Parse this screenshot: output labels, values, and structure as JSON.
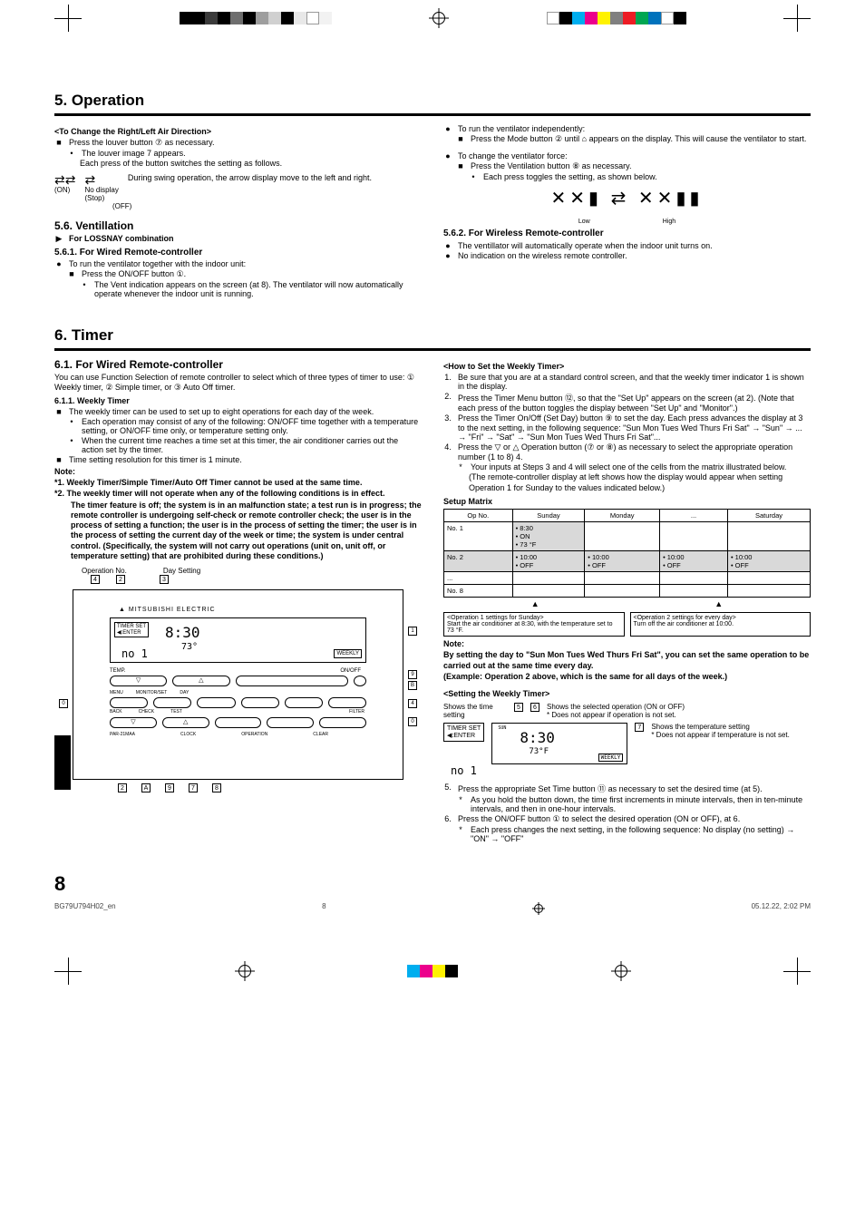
{
  "regmarks": {
    "top_left_colors": [
      "#000000",
      "#000000",
      "#3b3b3b",
      "#000000",
      "#6e6e6e",
      "#000000",
      "#9e9e9e",
      "#d0d0d0",
      "#000000",
      "#e8e8e8",
      "#ffffff",
      "#f2f2f2"
    ],
    "top_right_colors": [
      "#ffffff",
      "#000000",
      "#00aeef",
      "#ec008c",
      "#fff200",
      "#808080",
      "#ed1c24",
      "#00a651",
      "#0072bc",
      "#ffffff",
      "#000000"
    ],
    "bottom_colors": [
      "#00aeef",
      "#ec008c",
      "#fff200",
      "#000000"
    ]
  },
  "section5": {
    "title": "5. Operation",
    "left": {
      "change_dir_title": "<To Change the Right/Left Air Direction>",
      "press_louver": "Press the louver button ⑦ as necessary.",
      "louver_appears": "The louver image 7 appears.",
      "each_press": "Each press of the button switches the setting as follows.",
      "swing": {
        "on": "(ON)",
        "stop_label": "No display\n(Stop)",
        "off": "(OFF)",
        "desc": "During swing operation, the arrow display move to the left and right."
      },
      "vent_title": "5.6. Ventillation",
      "lossnay": "For LOSSNAY combination",
      "wired_title": "5.6.1. For Wired Remote-controller",
      "run_with_indoor": "To run the ventilator together with the indoor unit:",
      "press_onoff": "Press the ON/OFF button ①.",
      "vent_indication": "The Vent indication appears on the screen (at 8). The ventilator will now automatically operate whenever the indoor unit is running."
    },
    "right": {
      "run_indep": "To run the ventilator independently:",
      "press_mode": "Press the Mode button ② until  ⌂  appears on the display. This will cause the ventilator to start.",
      "change_force": "To change the ventilator force:",
      "press_vent_btn": "Press the Ventilation button ⑧ as necessary.",
      "each_toggle": "Each press toggles the setting, as shown below.",
      "low": "Low",
      "high": "High",
      "wireless_title": "5.6.2. For Wireless Remote-controller",
      "auto_operate": "The ventillator will automatically operate when the indoor unit turns on.",
      "no_indication": "No indication on the wireless remote controller."
    }
  },
  "section6": {
    "title": "6. Timer",
    "left": {
      "wired_title": "6.1. For Wired Remote-controller",
      "intro": "You can use Function Selection of remote controller to select which of three types of timer to use: ① Weekly timer, ② Simple timer, or ③ Auto Off timer.",
      "weekly_title": "6.1.1. Weekly Timer",
      "weekly_desc": "The weekly timer can be used to set up to eight operations for each day of the week.",
      "weekly_b1": "Each operation may consist of any of the following: ON/OFF time together with a temperature setting, or ON/OFF time only, or temperature setting only.",
      "weekly_b2": "When the current time reaches a time set at this timer, the air conditioner carries out the action set by the timer.",
      "resolution": "Time setting resolution for this timer is 1 minute.",
      "note_label": "Note:",
      "note1": "*1. Weekly Timer/Simple Timer/Auto Off Timer cannot be used at the same time.",
      "note2": "*2. The weekly timer will not operate when any of the following conditions is in effect.",
      "note2_body": "The timer feature is off; the system is in an malfunction state; a test run is in progress; the remote controller is undergoing self-check or remote controller check; the user is in the process of setting a function; the user is in the process of setting the timer; the user is in the process of setting the current day of the week or time; the system is under central control. (Specifically, the system will not carry out operations (unit on, unit off, or temperature setting) that are prohibited during these conditions.)",
      "diagram": {
        "operation_no": "Operation No.",
        "day_setting": "Day Setting",
        "brand": "▲ MITSUBISHI ELECTRIC",
        "timer_set": "TIMER SET\n◀:ENTER",
        "time": "8:30",
        "temp": "73°",
        "weekly": "WEEKLY",
        "labels": {
          "temp_btn": "TEMP.",
          "onoff": "ON/OFF",
          "menu": "MENU",
          "back": "BACK",
          "monitor": "MONITOR/SET",
          "day": "DAY",
          "check": "CHECK",
          "test": "TEST",
          "filter": "FILTER",
          "onoff2": "ON/OFF",
          "clock": "CLOCK",
          "operation": "OPERATION",
          "clear": "CLEAR",
          "par": "PAR-21MAA"
        },
        "callouts": [
          "1",
          "2",
          "3",
          "4",
          "7",
          "8",
          "9",
          "0",
          "A",
          "B",
          "C",
          "D"
        ]
      }
    },
    "right": {
      "howto_title": "<How to Set the Weekly Timer>",
      "step1": "Be sure that you are at a standard control screen, and that the weekly timer indicator 1 is shown in the display.",
      "step2": "Press the Timer Menu button ⑫, so that the \"Set Up\" appears on the screen (at 2). (Note that each press of the button toggles the display between \"Set Up\" and \"Monitor\".)",
      "step3": "Press the Timer On/Off (Set Day) button ⑨ to set the day. Each press advances the display at 3 to the next setting, in the following sequence: \"Sun Mon Tues Wed Thurs Fri Sat\" → \"Sun\" → ... → \"Fri\" → \"Sat\" → \"Sun Mon Tues Wed Thurs Fri Sat\"...",
      "step4": "Press the ▽ or △ Operation button (⑦ or ⑧) as necessary to select the appropriate operation number (1 to 8) 4.",
      "step4_star": "Your inputs at Steps 3 and 4 will select one of the cells from the matrix illustrated below.",
      "step4_paren": "(The remote-controller display at left shows how the display would appear when setting Operation 1 for Sunday to the values indicated below.)",
      "matrix_title": "Setup Matrix",
      "matrix": {
        "headers": [
          "Op No.",
          "Sunday",
          "Monday",
          "...",
          "Saturday"
        ],
        "rows": [
          {
            "op": "No. 1",
            "cells": [
              "• 8:30\n• ON\n• 73 °F",
              "",
              "",
              ""
            ],
            "shaded": [
              0
            ]
          },
          {
            "op": "No. 2",
            "cells": [
              "• 10:00\n• OFF",
              "• 10:00\n• OFF",
              "• 10:00\n• OFF",
              "• 10:00\n• OFF"
            ],
            "shaded": [
              0,
              1,
              2,
              3
            ],
            "row_shaded": true
          },
          {
            "op": "...",
            "cells": [
              "",
              "",
              "",
              ""
            ]
          },
          {
            "op": "No. 8",
            "cells": [
              "",
              "",
              "",
              ""
            ]
          }
        ]
      },
      "matrix_note_left": "<Operation 1 settings for Sunday>\nStart the air conditioner at 8:30, with the temperature set to 73 °F.",
      "matrix_note_right": "<Operation 2 settings for every day>\nTurn off the air conditioner at 10:00.",
      "note_label": "Note:",
      "note_body1": "By setting the day to \"Sun Mon Tues Wed Thurs Fri Sat\", you can set the same operation to be carried out at the same time every day.",
      "note_body2": "(Example: Operation 2 above, which is the same for all days of the week.)",
      "setting_title": "<Setting the Weekly Timer>",
      "shows_time": "Shows the time setting",
      "shows_op": "Shows the selected operation (ON or OFF)\n* Does not appear if operation is not set.",
      "shows_temp": "Shows the temperature setting\n* Does not appear if temperature is not set.",
      "lcd": {
        "timer_set": "TIMER SET\n◀:ENTER",
        "time": "8:30",
        "no1": "no 1",
        "days": "SUN",
        "weekly": "WEEKLY"
      },
      "step5": "Press the appropriate Set Time button ⑪ as necessary to set the desired time (at 5).",
      "step5_star": "As you hold the button down, the time first increments in minute intervals, then in ten-minute intervals, and then in one-hour intervals.",
      "step6": "Press the ON/OFF button ① to select the desired operation (ON or OFF), at 6.",
      "step6_star": "Each press changes the next setting, in the following sequence: No display (no setting) → \"ON\" → \"OFF\""
    }
  },
  "footer": {
    "pagenum": "8",
    "file": "BG79U794H02_en",
    "page": "8",
    "date": "05.12.22, 2:02 PM"
  }
}
